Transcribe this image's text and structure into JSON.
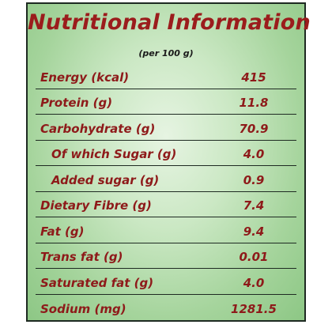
{
  "title": "Nutritional Information",
  "subtitle": "(per 100 g)",
  "rows": [
    {
      "label": "Energy (kcal)",
      "value": "415"
    },
    {
      "label": "Protein (g)",
      "value": "11.8"
    },
    {
      "label": "Carbohydrate (g)",
      "value": "70.9"
    },
    {
      "label": "Of which Sugar (g)",
      "value": "4.0"
    },
    {
      "label": "Added sugar (g)",
      "value": "0.9"
    },
    {
      "label": "Dietary Fibre (g)",
      "value": "7.4"
    },
    {
      "label": "Fat (g)",
      "value": "9.4"
    },
    {
      "label": "Trans fat (g)",
      "value": "0.01"
    },
    {
      "label": "Saturated fat (g)",
      "value": "4.0"
    },
    {
      "label": "Sodium (mg)",
      "value": "1281.5"
    }
  ],
  "colors": {
    "text": "#8e1a1a",
    "border": "#1e2a22",
    "background": "#a5d49c"
  }
}
